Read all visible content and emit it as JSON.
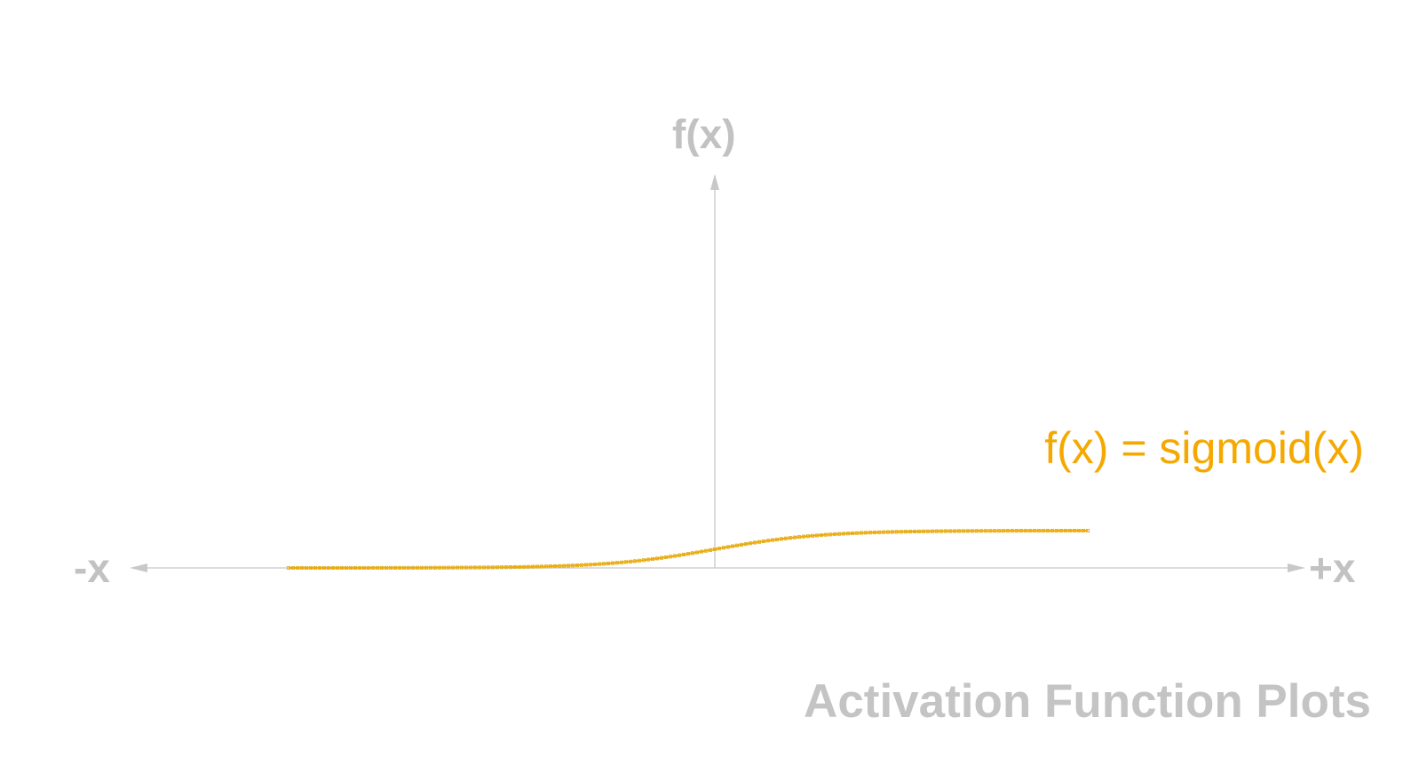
{
  "chart_data": {
    "type": "line",
    "title": "Activation Function Plots",
    "xlabel_negative": "-x",
    "xlabel_positive": "+x",
    "ylabel": "f(x)",
    "series": [
      {
        "name": "f(x) = sigmoid(x)",
        "function": "sigmoid",
        "color": "#f5a800",
        "marker_color": "#e0b020"
      }
    ],
    "x_range": [
      -8,
      7
    ],
    "grid": false
  },
  "colors": {
    "axis": "#c8c8c8",
    "axis_text": "#c2c2c2",
    "accent": "#f5a800"
  }
}
